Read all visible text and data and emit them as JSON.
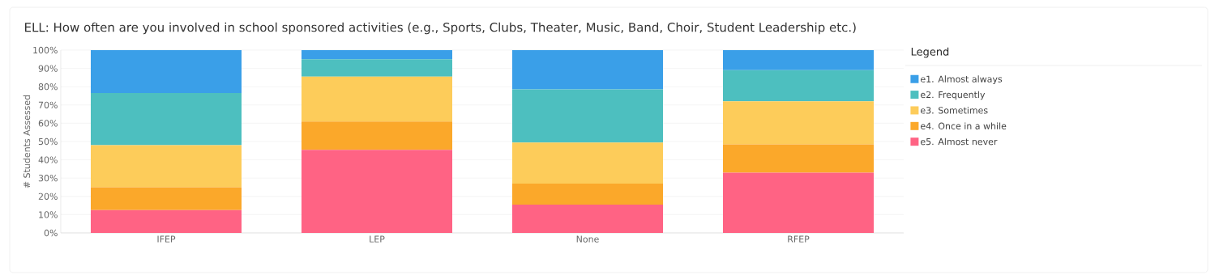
{
  "chart_data": {
    "type": "bar",
    "stacked": true,
    "title": "ELL: How often are you involved in school sponsored activities (e.g., Sports, Clubs, Theater, Music, Band, Choir, Student Leadership etc.)",
    "ylabel": "# Students Assessed",
    "legend_title": "Legend",
    "categories": [
      "IFEP",
      "LEP",
      "None",
      "RFEP"
    ],
    "series": [
      {
        "name": "e5. Almost never",
        "color": "#ff6384",
        "values": [
          12.5,
          45.5,
          15.5,
          33
        ]
      },
      {
        "name": "e4. Once in a while",
        "color": "#fba82a",
        "values": [
          12.5,
          15.5,
          11.5,
          15.5
        ]
      },
      {
        "name": "e3. Sometimes",
        "color": "#fdcc5a",
        "values": [
          23,
          24.5,
          22.5,
          23.5
        ]
      },
      {
        "name": "e2. Frequently",
        "color": "#4dbfbf",
        "values": [
          28.5,
          9.5,
          29,
          17
        ]
      },
      {
        "name": "e1. Almost always",
        "color": "#3a9fe8",
        "values": [
          23.5,
          5,
          21.5,
          11
        ]
      }
    ],
    "ylim": [
      0,
      100
    ],
    "yticks": [
      {
        "value": 0,
        "label": "0%"
      },
      {
        "value": 10,
        "label": "10%"
      },
      {
        "value": 20,
        "label": "20%"
      },
      {
        "value": 30,
        "label": "30%"
      },
      {
        "value": 40,
        "label": "40%"
      },
      {
        "value": 50,
        "label": "50%"
      },
      {
        "value": 60,
        "label": "60%"
      },
      {
        "value": 70,
        "label": "70%"
      },
      {
        "value": 80,
        "label": "80%"
      },
      {
        "value": 90,
        "label": "90%"
      },
      {
        "value": 100,
        "label": "100%"
      }
    ],
    "grid": "y",
    "legend": "right"
  }
}
